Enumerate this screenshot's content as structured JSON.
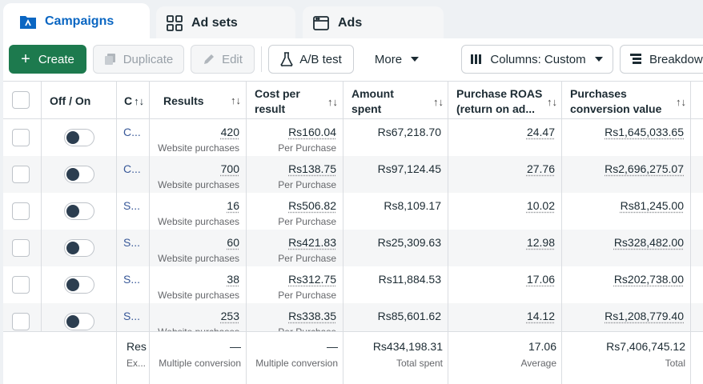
{
  "tabs": [
    {
      "label": "Campaigns",
      "icon": "folder-icon"
    },
    {
      "label": "Ad sets",
      "icon": "grid-icon"
    },
    {
      "label": "Ads",
      "icon": "window-icon"
    }
  ],
  "toolbar": {
    "create": "Create",
    "duplicate": "Duplicate",
    "edit": "Edit",
    "ab_test": "A/B test",
    "more": "More",
    "columns": "Columns: Custom",
    "breakdown": "Breakdown"
  },
  "columns": {
    "off_on": "Off / On",
    "c": "C",
    "results": "Results",
    "cost_per_result_1": "Cost per",
    "cost_per_result_2": "result",
    "amount_spent_1": "Amount",
    "amount_spent_2": "spent",
    "roas_1": "Purchase ROAS",
    "roas_2": "(return on ad...",
    "conv_value_1": "Purchases",
    "conv_value_2": "conversion value"
  },
  "rows": [
    {
      "name": "C...",
      "results": "420",
      "results_sub": "Website purchases",
      "cost": "Rs160.04",
      "cost_sub": "Per Purchase",
      "spent": "Rs67,218.70",
      "roas": "24.47",
      "value": "Rs1,645,033.65"
    },
    {
      "name": "C...",
      "results": "700",
      "results_sub": "Website purchases",
      "cost": "Rs138.75",
      "cost_sub": "Per Purchase",
      "spent": "Rs97,124.45",
      "roas": "27.76",
      "value": "Rs2,696,275.07"
    },
    {
      "name": "S...",
      "results": "16",
      "results_sub": "Website purchases",
      "cost": "Rs506.82",
      "cost_sub": "Per Purchase",
      "spent": "Rs8,109.17",
      "roas": "10.02",
      "value": "Rs81,245.00"
    },
    {
      "name": "S...",
      "results": "60",
      "results_sub": "Website purchases",
      "cost": "Rs421.83",
      "cost_sub": "Per Purchase",
      "spent": "Rs25,309.63",
      "roas": "12.98",
      "value": "Rs328,482.00"
    },
    {
      "name": "S...",
      "results": "38",
      "results_sub": "Website purchases",
      "cost": "Rs312.75",
      "cost_sub": "Per Purchase",
      "spent": "Rs11,884.53",
      "roas": "17.06",
      "value": "Rs202,738.00"
    },
    {
      "name": "S...",
      "results": "253",
      "results_sub": "Website purchases",
      "cost": "Rs338.35",
      "cost_sub": "Per Purchase",
      "spent": "Rs85,601.62",
      "roas": "14.12",
      "value": "Rs1,208,779.40"
    }
  ],
  "footer": {
    "c_label": "Res",
    "c_sub": "Ex...",
    "results": "—",
    "results_sub": "Multiple conversion",
    "cost": "—",
    "cost_sub": "Multiple conversion",
    "spent": "Rs434,198.31",
    "spent_sub": "Total spent",
    "roas": "17.06",
    "roas_sub": "Average",
    "value": "Rs7,406,745.12",
    "value_sub": "Total"
  },
  "colors": {
    "accent": "#0a66c2",
    "create": "#1d7a4e",
    "link": "#385898"
  }
}
